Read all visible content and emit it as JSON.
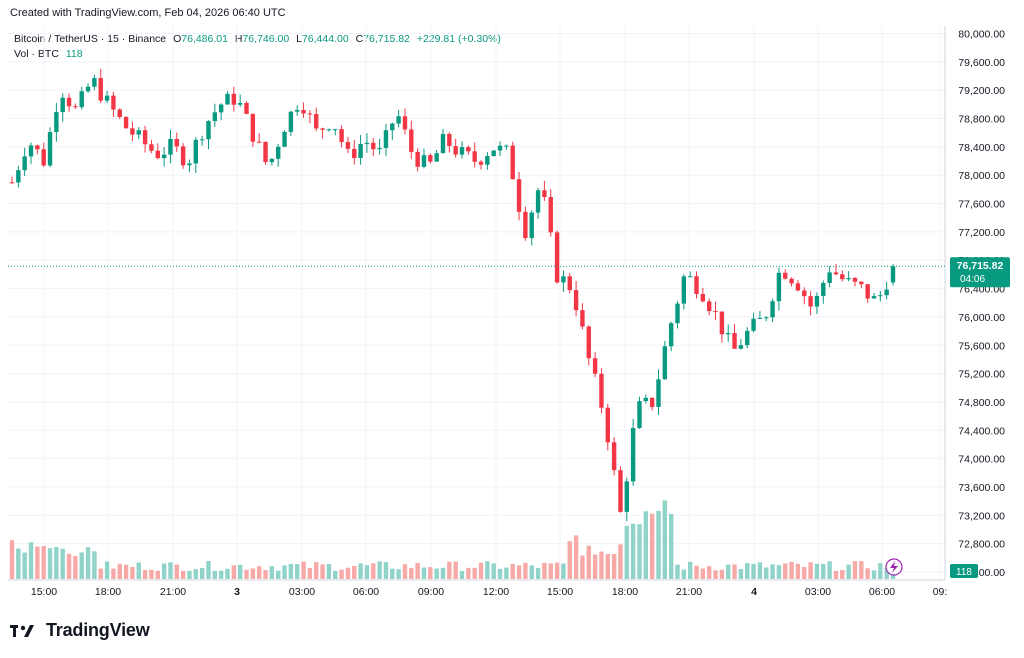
{
  "header": {
    "created": "Created with TradingView.com, Feb 04, 2026 06:40 UTC"
  },
  "legend": {
    "symbol": "Bitcoin / TetherUS · 15 · Binance",
    "o_label": "O",
    "o": "76,486.01",
    "h_label": "H",
    "h": "76,746.00",
    "l_label": "L",
    "l": "76,444.00",
    "c_label": "C",
    "c": "76,715.82",
    "change": "+229.81 (+0.30%)",
    "vol_label": "Vol · BTC",
    "vol": "118"
  },
  "price_tag": {
    "price": "76,715.82",
    "countdown": "04:06"
  },
  "volume_tag": "118",
  "footer": {
    "brand": "TradingView"
  },
  "colors": {
    "up": "#089981",
    "down": "#f23645",
    "up_vol": "#8fd3c9",
    "down_vol": "#f7a9a7",
    "grid": "#f0f3fa"
  },
  "chart_data": {
    "type": "candlestick",
    "ylim": [
      72400,
      80000
    ],
    "y_ticks": [
      "80,000.00",
      "79,600.00",
      "79,200.00",
      "78,800.00",
      "78,400.00",
      "78,000.00",
      "77,600.00",
      "77,200.00",
      "76,800.00",
      "76,400.00",
      "76,000.00",
      "75,600.00",
      "75,200.00",
      "74,800.00",
      "74,400.00",
      "74,000.00",
      "73,600.00",
      "73,200.00",
      "72,800.00",
      "72,400.00"
    ],
    "x_ticks": [
      "15:00",
      "18:00",
      "21:00",
      "3",
      "03:00",
      "06:00",
      "09:00",
      "12:00",
      "15:00",
      "18:00",
      "21:00",
      "4",
      "03:00",
      "06:00",
      "09:"
    ],
    "last_price": 76715.82,
    "close_path": [
      [
        0,
        77900
      ],
      [
        1,
        78500
      ],
      [
        2,
        78200
      ],
      [
        3,
        79250
      ],
      [
        4,
        78900
      ],
      [
        5,
        79350
      ],
      [
        6,
        79000
      ],
      [
        7,
        78700
      ],
      [
        8,
        78500
      ],
      [
        9,
        78300
      ],
      [
        10,
        78400
      ],
      [
        11,
        78200
      ],
      [
        12,
        78700
      ],
      [
        13,
        79000
      ],
      [
        14,
        79100
      ],
      [
        15,
        78600
      ],
      [
        16,
        78100
      ],
      [
        17,
        78700
      ],
      [
        18,
        79100
      ],
      [
        19,
        78600
      ],
      [
        20,
        78800
      ],
      [
        21,
        78250
      ],
      [
        22,
        78500
      ],
      [
        23,
        78300
      ],
      [
        24,
        78900
      ],
      [
        25,
        78300
      ],
      [
        26,
        78100
      ],
      [
        27,
        78500
      ],
      [
        28,
        78300
      ],
      [
        29,
        78200
      ],
      [
        30,
        78400
      ],
      [
        31,
        78300
      ],
      [
        32,
        77200
      ],
      [
        33,
        77900
      ],
      [
        34,
        76600
      ],
      [
        35,
        76400
      ],
      [
        36,
        75400
      ],
      [
        37,
        74600
      ],
      [
        38,
        73200
      ],
      [
        39,
        74700
      ],
      [
        40,
        74800
      ],
      [
        41,
        75800
      ],
      [
        42,
        76600
      ],
      [
        43,
        76400
      ],
      [
        44,
        76000
      ],
      [
        45,
        75500
      ],
      [
        46,
        75800
      ],
      [
        47,
        76000
      ],
      [
        48,
        76700
      ],
      [
        49,
        76500
      ],
      [
        50,
        76100
      ],
      [
        51,
        76700
      ],
      [
        52,
        76500
      ],
      [
        53,
        76400
      ],
      [
        54,
        76200
      ],
      [
        55,
        76715.82
      ]
    ],
    "volume": "relative volume bars, heavy spike during the 16:00–19:00 selloff",
    "volume_last": 118
  }
}
